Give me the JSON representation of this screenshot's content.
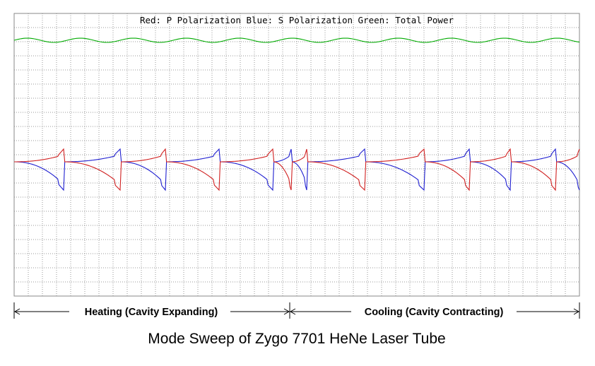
{
  "chart_data": {
    "type": "line",
    "title": "Mode Sweep of Zygo 7701 HeNe Laser Tube",
    "legend_caption": "Red: P Polarization  Blue: S Polarization  Green: Total Power",
    "legend_placement": "top-center",
    "grid": true,
    "x_grid_divisions": 40,
    "y_grid_divisions": 20,
    "xlim": [
      0,
      40
    ],
    "ylim": [
      0,
      20
    ],
    "phase_labels": {
      "heating": "Heating (Cavity Expanding)",
      "cooling": "Cooling (Cavity Contracting)",
      "boundary_x": 19.5
    },
    "series": [
      {
        "name": "Total Power",
        "label": "Green",
        "color": "#00aa00",
        "y_mean": 18.1,
        "ripple": 0.15,
        "period": 3.75
      },
      {
        "name": "S Polarization",
        "label": "Blue",
        "color": "#1f1fd0",
        "y_high": 10.0,
        "y_low": 7.9,
        "y_mid": 9.5,
        "switch_x": [
          0,
          3.5,
          7.5,
          10.7,
          14.5,
          18.3,
          19.6,
          20.7,
          24.8,
          29.0,
          32.2,
          35.1,
          38.3,
          40
        ],
        "start_level": "low"
      },
      {
        "name": "P Polarization",
        "label": "Red",
        "color": "#d02020",
        "y_high": 10.0,
        "y_low": 7.9,
        "y_mid": 9.5,
        "switch_x": [
          0,
          3.5,
          7.5,
          10.7,
          14.5,
          18.3,
          19.6,
          20.7,
          24.8,
          29.0,
          32.2,
          35.1,
          38.3,
          40
        ],
        "start_level": "high"
      }
    ]
  }
}
